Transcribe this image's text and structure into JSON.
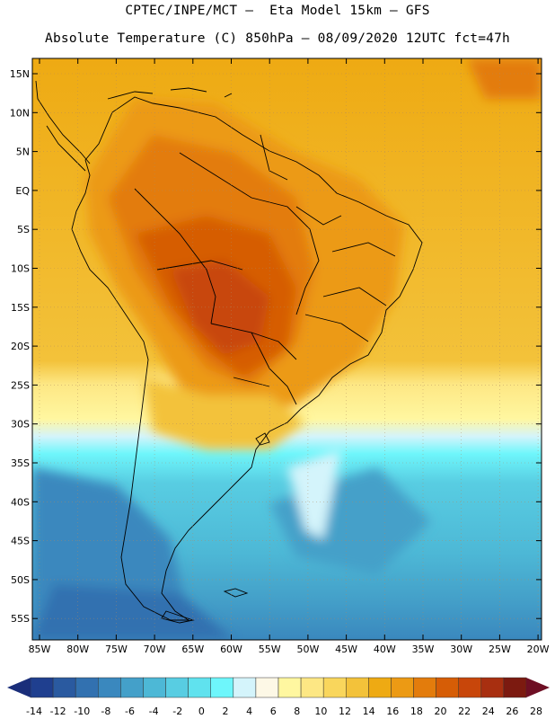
{
  "header": {
    "line1": "CPTEC/INPE/MCT –  Eta Model 15km – GFS",
    "line2": "Absolute Temperature (C) 850hPa – 08/09/2020 12UTC fct=47h"
  },
  "map": {
    "lat_labels": [
      "15N",
      "10N",
      "5N",
      "EQ",
      "5S",
      "10S",
      "15S",
      "20S",
      "25S",
      "30S",
      "35S",
      "40S",
      "45S",
      "50S",
      "55S"
    ],
    "lon_labels": [
      "85W",
      "80W",
      "75W",
      "70W",
      "65W",
      "60W",
      "55W",
      "50W",
      "45W",
      "40W",
      "35W",
      "30W",
      "25W",
      "20W"
    ]
  },
  "colorbar": {
    "ticks": [
      "-14",
      "-12",
      "-10",
      "-8",
      "-6",
      "-4",
      "-2",
      "0",
      "2",
      "4",
      "6",
      "8",
      "10",
      "12",
      "14",
      "16",
      "18",
      "20",
      "22",
      "24",
      "26",
      "28"
    ],
    "colors": [
      "#1f3f8f",
      "#2a5aa0",
      "#3271b0",
      "#3a88be",
      "#44a0c9",
      "#4db8d6",
      "#58cde2",
      "#60e2ee",
      "#6ef6fb",
      "#d4f4fb",
      "#fdf8e6",
      "#fff7a0",
      "#fde784",
      "#f9d65c",
      "#f3c23a",
      "#eeaa13",
      "#ec9a14",
      "#e37c0c",
      "#d65d06",
      "#c8460a",
      "#a82f10",
      "#7c1a10"
    ],
    "end_low": "#1a2e7a",
    "end_high": "#6e0f24"
  }
}
